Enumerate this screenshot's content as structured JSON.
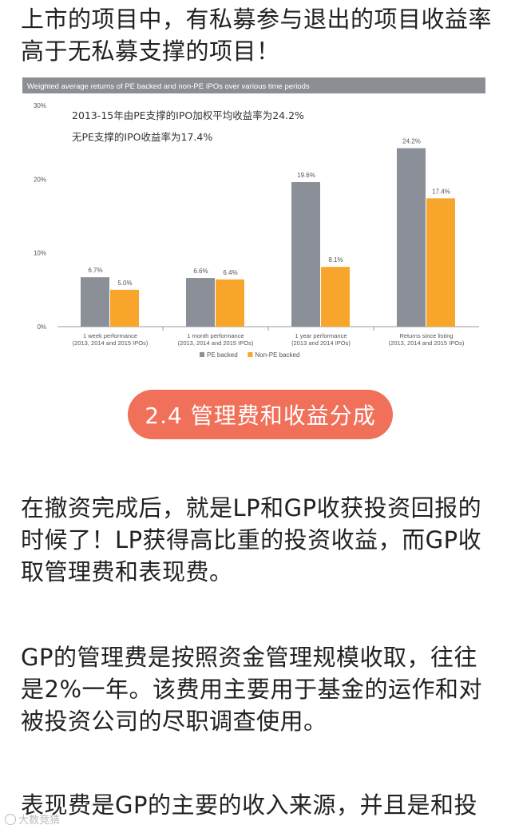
{
  "intro": {
    "line1": "上市的项目中，有私募参与退出的项目收益率",
    "line2": "高于无私募支撑的项目！"
  },
  "chart_data": {
    "type": "bar",
    "header": "Weighted average returns of PE backed and non-PE IPOs over various time periods",
    "annotation": [
      "2013-15年由PE支撑的IPO加权平均收益率为24.2%",
      "无PE支撑的IPO收益率为17.4%"
    ],
    "categories": [
      [
        "1 week performance",
        "(2013, 2014 and 2015 IPOs)"
      ],
      [
        "1 month performance",
        "(2013, 2014 and 2015 IPOs)"
      ],
      [
        "1 year performance",
        "(2013 and 2014 IPOs)"
      ],
      [
        "Returns since listing",
        "(2013, 2014 and 2015 IPOs)"
      ]
    ],
    "series": [
      {
        "name": "PE backed",
        "values": [
          6.7,
          6.6,
          19.6,
          24.2
        ],
        "labels": [
          "6.7%",
          "6.6%",
          "19.6%",
          "24.2%"
        ],
        "color": "#8a8f98"
      },
      {
        "name": "Non-PE backed",
        "values": [
          5.0,
          6.4,
          8.1,
          17.4
        ],
        "labels": [
          "5.0%",
          "6.4%",
          "8.1%",
          "17.4%"
        ],
        "color": "#f7a52b"
      }
    ],
    "yticks": [
      "0%",
      "10%",
      "20%",
      "30%"
    ],
    "ylim": [
      0,
      30
    ],
    "grid": false,
    "legend_position": "bottom"
  },
  "section_pill": "2.4 管理费和收益分成",
  "p1": {
    "line1": "在撤资完成后，就是LP和GP收获投资回报的",
    "line2": "时候了！LP获得高比重的投资收益，而GP收",
    "line3": "取管理费和表现费。"
  },
  "p2": {
    "line1": "GP的管理费是按照资金管理规模收取，往往",
    "line2": "是2%一年。该费用主要用于基金的运作和对",
    "line3": "被投资公司的尽职调查使用。"
  },
  "p3": {
    "line1": "表现费是GP的主要的收入来源，并且是和投"
  },
  "watermark": "大数竞猜"
}
